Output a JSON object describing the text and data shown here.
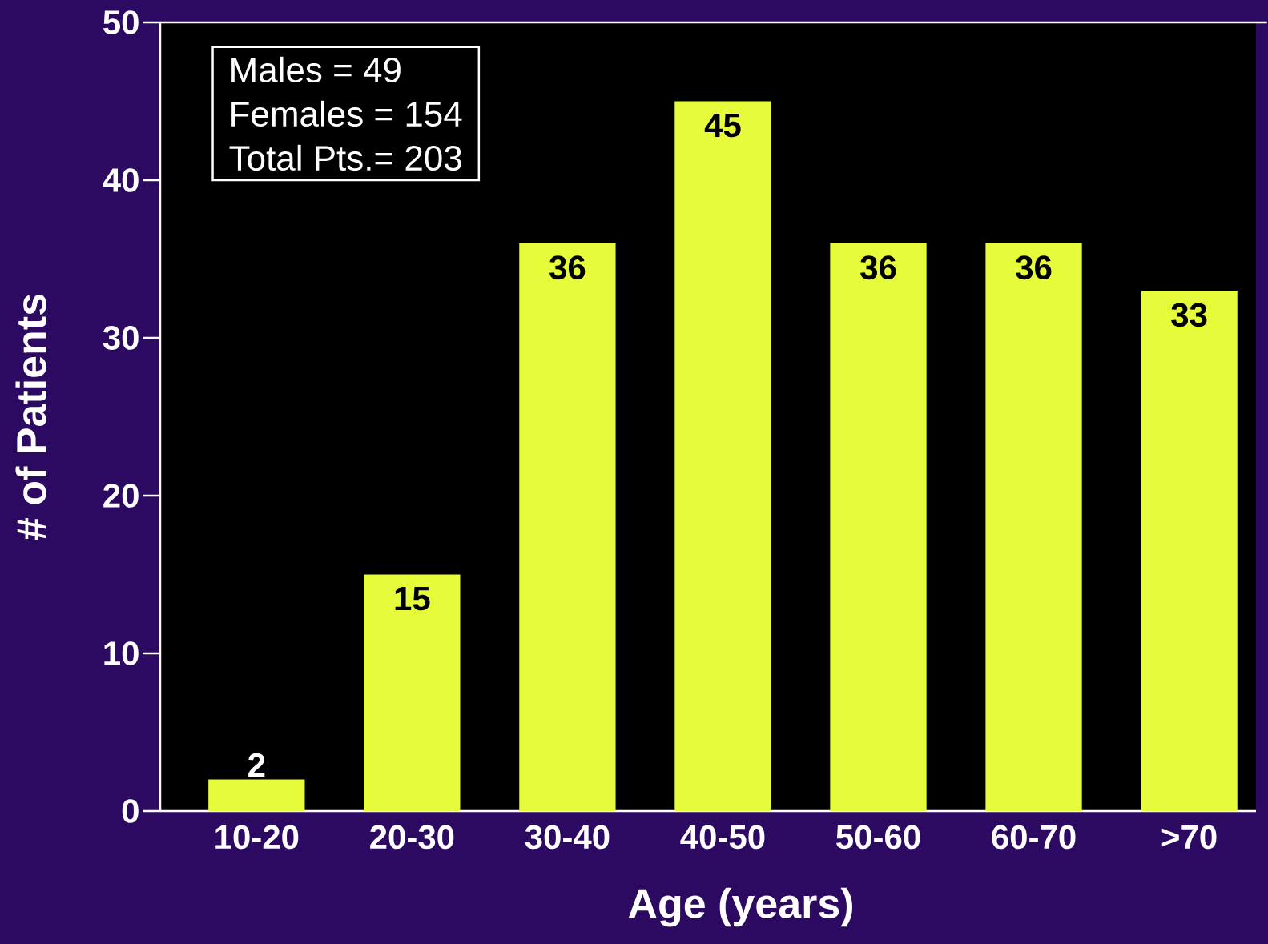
{
  "chart_data": {
    "type": "bar",
    "xlabel": "Age (years)",
    "ylabel": "# of Patients",
    "categories": [
      "10-20",
      "20-30",
      "30-40",
      "40-50",
      "50-60",
      "60-70",
      ">70"
    ],
    "values": [
      2,
      15,
      36,
      45,
      36,
      36,
      33
    ],
    "color": "#e6fb3a",
    "ylim": [
      0,
      50
    ],
    "yticks": [
      0,
      10,
      20,
      30,
      40,
      50
    ],
    "data_labels": true,
    "annotations": [
      "Males =  49",
      "Females = 154",
      "Total Pts.= 203"
    ]
  }
}
